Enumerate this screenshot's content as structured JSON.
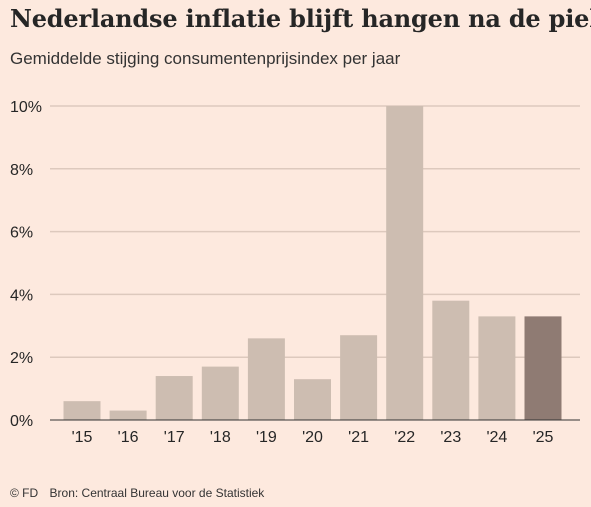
{
  "title": "Nederlandse inflatie blijft hangen na de piek",
  "subtitle": "Gemiddelde stijging consumentenprijsindex per jaar",
  "footer": {
    "brand": "© FD",
    "source": "Bron: Centraal Bureau voor de Statistiek"
  },
  "colors": {
    "background": "#fde9de",
    "bar": "#cdbdb1",
    "bar_highlight": "#8f7b73",
    "grid": "#ddc9bd",
    "axis": "#333333"
  },
  "chart_data": {
    "type": "bar",
    "categories": [
      "'15",
      "'16",
      "'17",
      "'18",
      "'19",
      "'20",
      "'21",
      "'22",
      "'23",
      "'24",
      "'25"
    ],
    "values": [
      0.6,
      0.3,
      1.4,
      1.7,
      2.6,
      1.3,
      2.7,
      10.0,
      3.8,
      3.3,
      3.3
    ],
    "highlight_index": 10,
    "yticks": [
      "0%",
      "2%",
      "4%",
      "6%",
      "8%",
      "10%"
    ],
    "ytick_values": [
      0,
      2,
      4,
      6,
      8,
      10
    ],
    "ylim": [
      0,
      10
    ],
    "grid": true,
    "legend": "none"
  }
}
